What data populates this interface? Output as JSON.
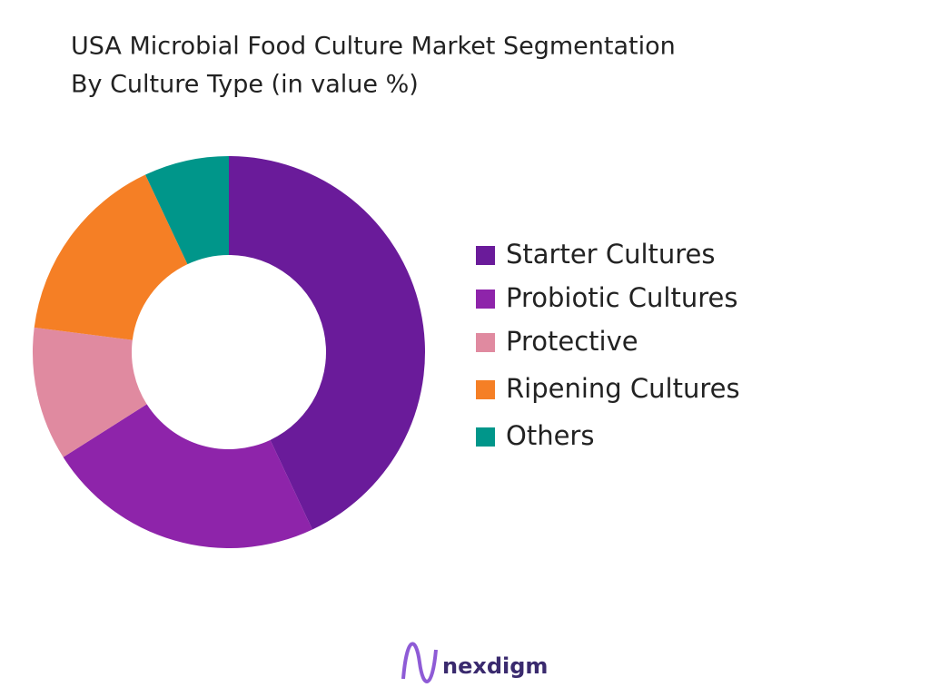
{
  "chart_data": {
    "type": "donut",
    "title": "USA Microbial Food Culture Market Segmentation",
    "subtitle": "By Culture Type (in value %)",
    "categories": [
      "Starter Cultures",
      "Probiotic Cultures",
      "Protective",
      "Ripening Cultures",
      "Others"
    ],
    "values": [
      43,
      23,
      11,
      16,
      7
    ],
    "colors": [
      "#6a1b9a",
      "#8e24aa",
      "#e08aa0",
      "#f57f25",
      "#00968a"
    ],
    "legend": "right"
  },
  "logo": "nexdigm"
}
